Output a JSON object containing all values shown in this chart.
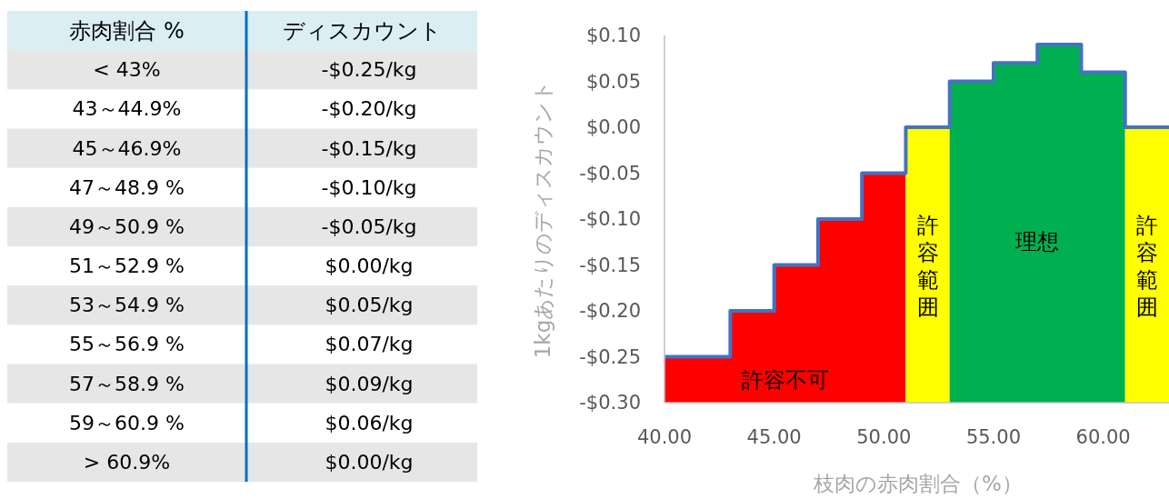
{
  "chart_data": [
    {
      "type": "other",
      "annotations": [
        "赤肉割合 %",
        "ディスカウント"
      ],
      "categories": [
        "< 43%",
        "43～44.9%",
        "45～46.9%",
        "47～48.9 %",
        "49～50.9 %",
        "51～52.9 %",
        "53～54.9 %",
        "55～56.9 %",
        "57～58.9 %",
        "59～60.9 %",
        "> 60.9%"
      ],
      "value_labels": [
        "-$0.25/kg",
        "-$0.20/kg",
        "-$0.15/kg",
        "-$0.10/kg",
        "-$0.05/kg",
        "$0.00/kg",
        "$0.05/kg",
        "$0.07/kg",
        "$0.09/kg",
        "$0.06/kg",
        "$0.00/kg"
      ]
    },
    {
      "type": "step",
      "xlabel": "枝肉の赤肉割合（%）",
      "ylabel": "1kgあたりのディスカウント",
      "xlim": [
        40,
        63
      ],
      "ylim": [
        -0.3,
        0.1
      ],
      "xticks": [
        {
          "value": 40,
          "label": "40.00"
        },
        {
          "value": 45,
          "label": "45.00"
        },
        {
          "value": 50,
          "label": "50.00"
        },
        {
          "value": 55,
          "label": "55.00"
        },
        {
          "value": 60,
          "label": "60.00"
        }
      ],
      "yticks": [
        {
          "value": -0.3,
          "label": "-$0.30"
        },
        {
          "value": -0.25,
          "label": "-$0.25"
        },
        {
          "value": -0.2,
          "label": "-$0.20"
        },
        {
          "value": -0.15,
          "label": "-$0.15"
        },
        {
          "value": -0.1,
          "label": "-$0.10"
        },
        {
          "value": -0.05,
          "label": "-$0.05"
        },
        {
          "value": 0,
          "label": "$0.00"
        },
        {
          "value": 0.05,
          "label": "$0.05"
        },
        {
          "value": 0.1,
          "label": "$0.10"
        }
      ],
      "series": [
        {
          "type": "area",
          "name": "許容不可",
          "color": "#ff0000",
          "x": [
            40,
            40,
            43,
            43,
            45,
            45,
            47,
            47,
            49,
            49,
            51,
            51
          ],
          "values": [
            -0.3,
            -0.25,
            -0.25,
            -0.2,
            -0.2,
            -0.15,
            -0.15,
            -0.1,
            -0.1,
            -0.05,
            -0.05,
            -0.3
          ]
        },
        {
          "type": "area",
          "name": "許容範囲",
          "color": "#ffff00",
          "x": [
            51,
            51,
            53,
            53
          ],
          "values": [
            -0.3,
            0,
            0,
            -0.3
          ]
        },
        {
          "type": "area",
          "name": "理想",
          "color": "#00b050",
          "x": [
            53,
            53,
            55,
            55,
            57,
            57,
            59,
            59,
            61,
            61
          ],
          "values": [
            -0.3,
            0.05,
            0.05,
            0.07,
            0.07,
            0.09,
            0.09,
            0.06,
            0.06,
            -0.3
          ]
        },
        {
          "type": "area",
          "name": "許容範囲",
          "color": "#ffff00",
          "x": [
            61,
            61,
            63,
            63
          ],
          "values": [
            -0.3,
            0,
            0,
            -0.3
          ]
        },
        {
          "type": "step",
          "color": "#4472c4",
          "x": [
            40,
            43,
            45,
            47,
            49,
            51,
            53,
            55,
            57,
            59,
            61,
            63
          ],
          "values": [
            -0.25,
            -0.2,
            -0.15,
            -0.1,
            -0.05,
            0,
            0.05,
            0.07,
            0.09,
            0.06,
            0,
            0
          ]
        }
      ]
    }
  ]
}
